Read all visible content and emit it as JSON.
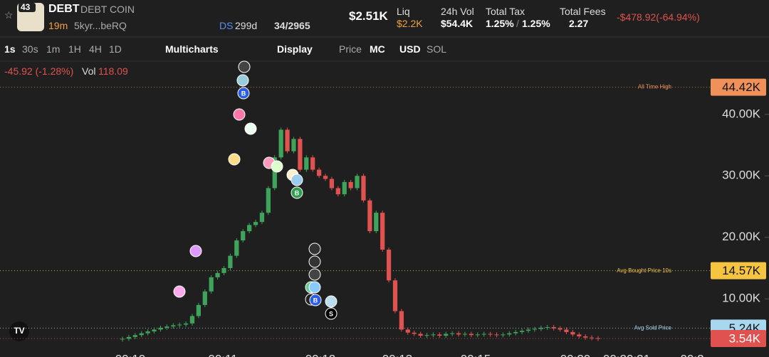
{
  "header": {
    "rank": "43",
    "symbol": "DEBT",
    "name": "DEBT COIN",
    "age": "19m",
    "address": "5kyr...beRQ",
    "ds": "DS",
    "ds_age": "299d",
    "holders": "34/2965",
    "price": "$2.51K",
    "stats": [
      {
        "label": "Liq",
        "value": "$2.2K"
      },
      {
        "label": "24h Vol",
        "value": "$54.4K"
      },
      {
        "label": "Total Tax",
        "value": "1.25%",
        "value2": "1.25%"
      },
      {
        "label": "Total Fees",
        "value": "2.27"
      }
    ],
    "pnl": "-$478.92(-64.94%)"
  },
  "toolbar": {
    "intervals": [
      "1s",
      "30s",
      "1m",
      "1H",
      "4H",
      "1D"
    ],
    "multicharts": "Multicharts",
    "display": "Display",
    "price": "Price",
    "mc": "MC",
    "usd": "USD",
    "sol": "SOL"
  },
  "legend": {
    "change": "-45.92 (-1.28%)",
    "vol_label": "Vol",
    "vol": "118.09"
  },
  "chart_data": {
    "type": "candlestick",
    "ylim": [
      540,
      48650
    ],
    "yticks": [
      {
        "value": 10000,
        "label": "10.00K"
      },
      {
        "value": 20000,
        "label": "20.00K"
      },
      {
        "value": 30000,
        "label": "30.00K"
      },
      {
        "value": 40000,
        "label": "40.00K"
      }
    ],
    "x_labels": [
      "00:10",
      "00:11",
      "00:12",
      "00:13",
      "00:15",
      "00:20",
      "00:20:21",
      "00:2"
    ],
    "up_color": "#3fa45b",
    "down_color": "#e0524f",
    "values": [
      3500,
      3800,
      4100,
      4400,
      4700,
      5000,
      5300,
      5500,
      5700,
      5800,
      6000,
      7200,
      9000,
      11200,
      13500,
      14200,
      15000,
      17000,
      19500,
      21000,
      22000,
      22500,
      24000,
      28000,
      33000,
      37500,
      34000,
      36000,
      31000,
      33000,
      31000,
      30000,
      29500,
      28000,
      27000,
      29000,
      28000,
      30000,
      26000,
      21000,
      24000,
      18000,
      13000,
      8000,
      5000,
      4500,
      4300,
      4000,
      4100,
      4200,
      4000,
      4300,
      4400,
      4200,
      4300,
      4100,
      4200,
      4300,
      4200,
      4100,
      4200,
      4400,
      4600,
      4800,
      5000,
      5100,
      5300,
      5400,
      5200,
      5000,
      4600,
      4200,
      3900,
      3700,
      3600,
      3540
    ],
    "price_lines": [
      {
        "label": "All Time High",
        "value": 44420,
        "value_label": "44.42K",
        "color": "#f0915a"
      },
      {
        "label": "Avg Bought Price 10s",
        "value": 14570,
        "value_label": "14.57K",
        "color": "#f5c542"
      },
      {
        "label": "Avg Sold Price",
        "value": 5240,
        "value_label": "5.24K",
        "color": "#a8d8f0"
      },
      {
        "value": 3540,
        "value_label": "3.54K",
        "color": "#e0524f"
      }
    ],
    "trade_markers": [
      "B",
      "B",
      "B",
      "S"
    ]
  }
}
